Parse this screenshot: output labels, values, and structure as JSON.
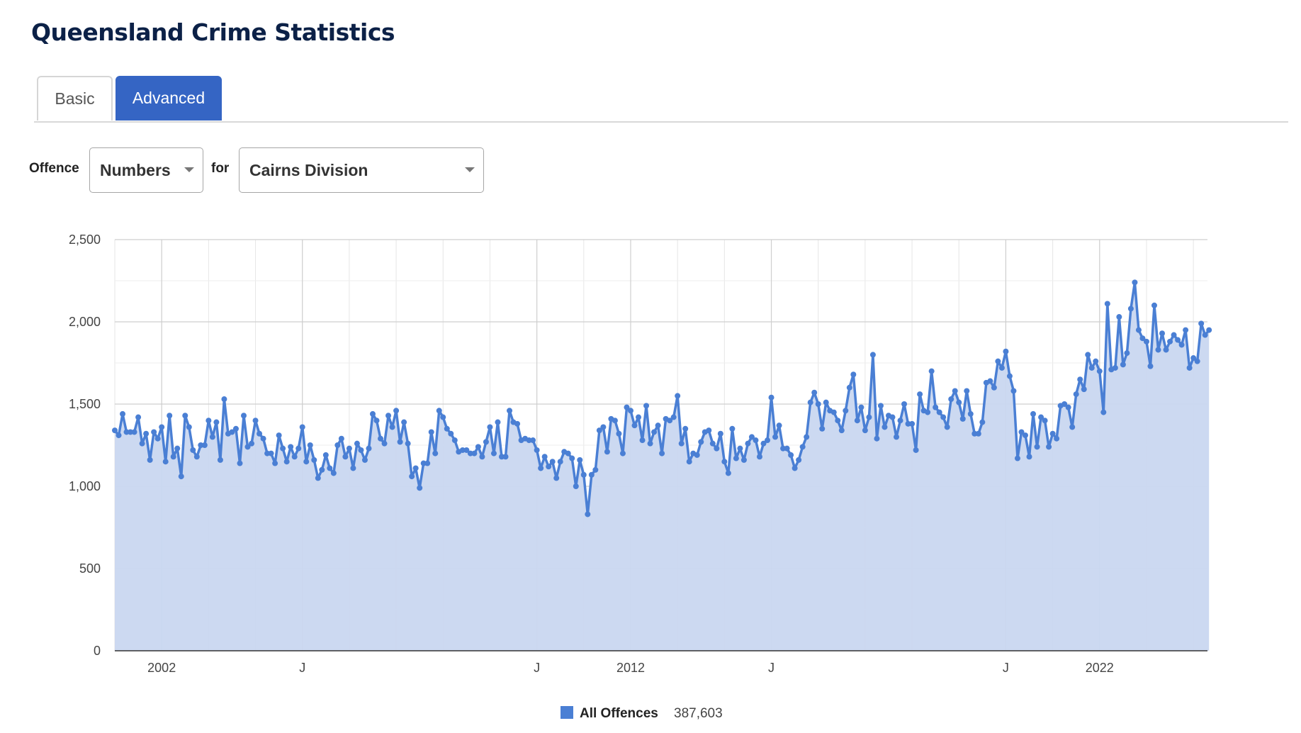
{
  "header": {
    "title": "Queensland Crime Statistics"
  },
  "tabs": [
    {
      "label": "Basic",
      "active": false
    },
    {
      "label": "Advanced",
      "active": true
    }
  ],
  "controls": {
    "offence_label": "Offence",
    "offence_value": "Numbers",
    "for_label": "for",
    "region_value": "Cairns Division"
  },
  "colors": {
    "accent": "#3565c4",
    "series": "#4a7fd4",
    "area": "#c9d7f0",
    "title": "#0c2147"
  },
  "chart_data": {
    "type": "area",
    "grid": true,
    "ylim": [
      0,
      2500
    ],
    "yticks": [
      0,
      500,
      1000,
      1500,
      2000,
      2500
    ],
    "ytick_labels": [
      "0",
      "500",
      "1,000",
      "1,500",
      "2,000",
      "2,500"
    ],
    "x_range_years": [
      2001,
      2024.3
    ],
    "x_tick_labels": [
      {
        "year": 2002,
        "label": "2002"
      },
      {
        "year": 2005,
        "label": "J"
      },
      {
        "year": 2010,
        "label": "J"
      },
      {
        "year": 2012,
        "label": "2012"
      },
      {
        "year": 2015,
        "label": "J"
      },
      {
        "year": 2020,
        "label": "J"
      },
      {
        "year": 2022,
        "label": "2022"
      }
    ],
    "legend": {
      "position": "bottom",
      "label": "All Offences",
      "total": "387,603"
    },
    "series": [
      {
        "name": "All Offences",
        "start": "2001-01",
        "frequency": "monthly",
        "values": [
          1340,
          1310,
          1440,
          1330,
          1330,
          1330,
          1420,
          1260,
          1320,
          1160,
          1330,
          1290,
          1360,
          1150,
          1430,
          1180,
          1230,
          1060,
          1430,
          1360,
          1220,
          1180,
          1250,
          1250,
          1400,
          1300,
          1390,
          1160,
          1530,
          1320,
          1330,
          1350,
          1140,
          1430,
          1240,
          1260,
          1400,
          1320,
          1290,
          1200,
          1200,
          1140,
          1310,
          1230,
          1150,
          1240,
          1180,
          1230,
          1360,
          1150,
          1250,
          1160,
          1050,
          1100,
          1190,
          1110,
          1080,
          1250,
          1290,
          1180,
          1230,
          1110,
          1260,
          1220,
          1160,
          1230,
          1440,
          1400,
          1290,
          1260,
          1430,
          1360,
          1460,
          1270,
          1390,
          1260,
          1060,
          1110,
          990,
          1140,
          1140,
          1330,
          1200,
          1460,
          1420,
          1350,
          1320,
          1280,
          1210,
          1220,
          1220,
          1200,
          1200,
          1240,
          1180,
          1270,
          1360,
          1200,
          1390,
          1180,
          1180,
          1460,
          1390,
          1380,
          1280,
          1290,
          1280,
          1280,
          1220,
          1110,
          1180,
          1120,
          1150,
          1050,
          1150,
          1210,
          1200,
          1170,
          1000,
          1160,
          1070,
          830,
          1070,
          1100,
          1340,
          1360,
          1210,
          1410,
          1400,
          1320,
          1200,
          1480,
          1460,
          1370,
          1420,
          1280,
          1490,
          1260,
          1330,
          1370,
          1200,
          1410,
          1400,
          1420,
          1550,
          1260,
          1350,
          1150,
          1200,
          1190,
          1270,
          1330,
          1340,
          1260,
          1230,
          1320,
          1150,
          1080,
          1350,
          1170,
          1230,
          1160,
          1260,
          1300,
          1280,
          1180,
          1260,
          1280,
          1540,
          1300,
          1370,
          1230,
          1230,
          1190,
          1110,
          1160,
          1240,
          1300,
          1510,
          1570,
          1500,
          1350,
          1510,
          1460,
          1450,
          1400,
          1340,
          1460,
          1600,
          1680,
          1400,
          1480,
          1340,
          1420,
          1800,
          1290,
          1490,
          1360,
          1430,
          1420,
          1300,
          1400,
          1500,
          1380,
          1380,
          1220,
          1560,
          1460,
          1450,
          1700,
          1480,
          1450,
          1420,
          1360,
          1530,
          1580,
          1510,
          1410,
          1580,
          1440,
          1320,
          1320,
          1390,
          1630,
          1640,
          1600,
          1760,
          1720,
          1820,
          1670,
          1580,
          1170,
          1330,
          1310,
          1180,
          1440,
          1240,
          1420,
          1400,
          1240,
          1320,
          1290,
          1490,
          1500,
          1480,
          1360,
          1560,
          1650,
          1590,
          1800,
          1720,
          1760,
          1700,
          1450,
          2110,
          1710,
          1720,
          2030,
          1740,
          1810,
          2080,
          2240,
          1950,
          1900,
          1880,
          1730,
          2100,
          1830,
          1930,
          1830,
          1880,
          1920,
          1890,
          1860,
          1950,
          1720,
          1780,
          1760,
          1990,
          1920,
          1950
        ]
      }
    ]
  }
}
